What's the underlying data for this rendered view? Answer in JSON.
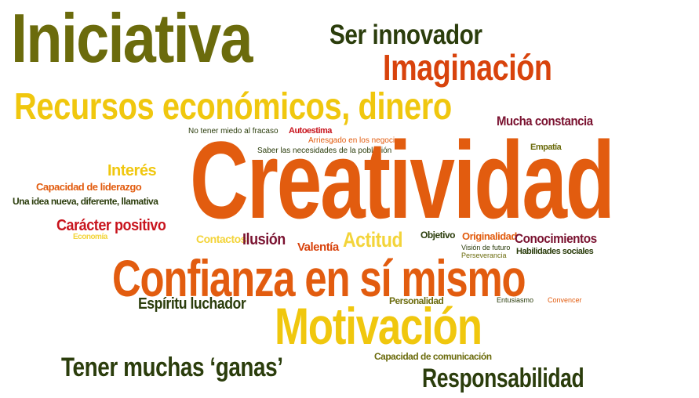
{
  "colors": {
    "olive": "#6b6b0c",
    "dark_green": "#2b3d0c",
    "orange": "#e25c0f",
    "red_orange": "#d8430c",
    "yellow": "#f0c70e",
    "yellow_light": "#f3d43a",
    "maroon": "#7a1230",
    "red": "#c8141d"
  },
  "words": {
    "iniciativa": "Iniciativa",
    "ser_innovador": "Ser innovador",
    "imaginacion": "Imaginación",
    "recursos": "Recursos económicos, dinero",
    "mucha_constancia": "Mucha constancia",
    "no_tener_miedo": "No tener miedo al fracaso",
    "autoestima": "Autoestima",
    "arriesgado": "Arriesgado en los negocios",
    "saber_necesidades": "Saber las necesidades de la población",
    "empatia": "Empatía",
    "creatividad": "Creatividad",
    "interes": "Interés",
    "capacidad_liderazgo": "Capacidad de liderazgo",
    "idea_nueva": "Una idea nueva, diferente, llamativa",
    "caracter_positivo": "Carácter positivo",
    "economia": "Economía",
    "contactos": "Contactos",
    "ilusion": "Ilusión",
    "valentia": "Valentía",
    "actitud": "Actitud",
    "objetivo": "Objetivo",
    "originalidad": "Originalidad",
    "conocimientos": "Conocimientos",
    "vision_futuro": "Visión de futuro",
    "perseverancia": "Perseverancia",
    "habilidades_sociales": "Habilidades sociales",
    "confianza": "Confianza en sí mismo",
    "espiritu_luchador": "Espíritu luchador",
    "personalidad": "Personalidad",
    "entusiasmo": "Entusiasmo",
    "convencer": "Convencer",
    "motivacion": "Motivación",
    "capacidad_comunicacion": "Capacidad de comunicación",
    "tener_ganas": "Tener muchas ‘ganas’",
    "responsabilidad": "Responsabilidad"
  }
}
